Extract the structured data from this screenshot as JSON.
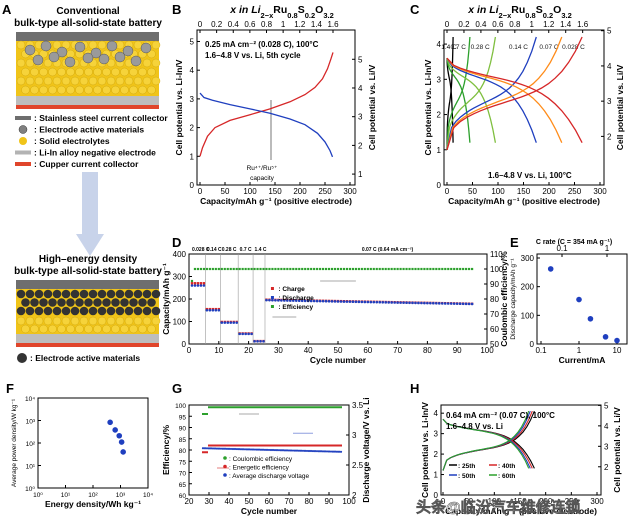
{
  "panel_letters": {
    "a": "A",
    "b": "B",
    "c": "C",
    "d": "D",
    "e": "E",
    "f": "F",
    "g": "G",
    "h": "H"
  },
  "schematic": {
    "conventional_title": "Conventional",
    "conventional_subtitle": "bulk-type all-solid-state battery",
    "legend": [
      {
        "label": ": Stainless steel current collector",
        "color": "#6e6e6e"
      },
      {
        "label": ": Electrode active materials",
        "color": "#808080"
      },
      {
        "label": ": Solid electrolytes",
        "color": "#f0c419"
      },
      {
        "label": ": Li-In alloy negative electrode",
        "color": "#b3b3b3"
      },
      {
        "label": ": Cupper current collector",
        "color": "#e0452b"
      }
    ],
    "high_title": "High–energy density",
    "high_subtitle": "bulk-type all-solid-state battery",
    "high_legend": ": Electrode active materials",
    "colors": {
      "steel": "#6e6e6e",
      "electrolyte": "#f0c419",
      "active_light": "#9a9a9a",
      "active_dark": "#333333",
      "lithium": "#bdbdbd",
      "copper": "#e0452b",
      "arrow": "#c8d3ea"
    }
  },
  "panel_b": {
    "top_axis_title": "x in Li2−xRu0.8S0.2O3.2",
    "top_axis_title_parts": {
      "base": "x in Li",
      "s1": "2−x",
      "t2": "Ru",
      "s2": "0.8",
      "t3": "S",
      "s3": "0.2",
      "t4": "O",
      "s4": "3.2"
    },
    "top_ticks": [
      "0",
      "0.2",
      "0.4",
      "0.6",
      "0.8",
      "1",
      "1.2",
      "1.4",
      "1.6"
    ],
    "bottom_ticks": [
      "0",
      "50",
      "100",
      "150",
      "200",
      "250",
      "300"
    ],
    "left_ticks": [
      "0",
      "1",
      "2",
      "3",
      "4",
      "5"
    ],
    "right_ticks": [
      "1",
      "2",
      "3",
      "4",
      "5"
    ],
    "xlabel": "Capacity/mAh g⁻¹ (positive electrode)",
    "ylabel_left": "Cell potential vs. Li-In/V",
    "ylabel_right": "Cell potential vs. Li/V",
    "cond1": "0.25 mA cm⁻² (0.028 C), 100°C",
    "cond2": "1.6–4.8 V vs. Li, 5th cycle",
    "annotation1": "Ru⁴⁺/Ru⁵⁺",
    "annotation2": "capacity",
    "annotation_x": 142
  },
  "panel_c": {
    "top_axis_title": "x in Li2−xRu0.8S0.2O3.2",
    "top_axis_title_parts": {
      "base": "x in Li",
      "s1": "2−x",
      "t2": "Ru",
      "s2": "0.8",
      "t3": "S",
      "s3": "0.2",
      "t4": "O",
      "s4": "3.2"
    },
    "top_ticks": [
      "0",
      "0.2",
      "0.4",
      "0.6",
      "0.8",
      "1",
      "1.2",
      "1.4",
      "1.6"
    ],
    "bottom_ticks": [
      "0",
      "50",
      "100",
      "150",
      "200",
      "250",
      "300"
    ],
    "left_ticks": [
      "0",
      "1",
      "2",
      "3",
      "4"
    ],
    "right_ticks": [
      "2",
      "3",
      "4",
      "5"
    ],
    "xlabel": "Capacity/mAh g⁻¹ (positive electrode)",
    "ylabel_left": "Cell potential vs. Li-In/V",
    "ylabel_right": "Cell potential vs. Li/V",
    "rate_labels": [
      {
        "text": "1.4 C",
        "x": 4,
        "color": "#000000"
      },
      {
        "text": "0.7 C",
        "x": 22,
        "color": "#1a1a1a"
      },
      {
        "text": "0.28 C",
        "x": 65,
        "color": "#1a1a1a"
      },
      {
        "text": "0.14 C",
        "x": 140,
        "color": "#1a1a1a"
      },
      {
        "text": "0.07 C",
        "x": 200,
        "color": "#1a1a1a"
      },
      {
        "text": "0.028 C",
        "x": 248,
        "color": "#1a1a1a"
      }
    ],
    "cond": "1.6–4.8 V vs. Li, 100°C"
  },
  "panel_d": {
    "header": [
      {
        "text": "0.028 C",
        "x": 1
      },
      {
        "text": "0.14 C",
        "x": 6
      },
      {
        "text": "0.28 C",
        "x": 11
      },
      {
        "text": "0.7 C",
        "x": 17
      },
      {
        "text": "1.4 C",
        "x": 22
      },
      {
        "text": "0.07 C (0.64 mA cm⁻²)",
        "x": 58
      }
    ],
    "bottom_ticks": [
      "0",
      "10",
      "20",
      "30",
      "40",
      "50",
      "60",
      "70",
      "80",
      "90",
      "100"
    ],
    "left_ticks": [
      "0",
      "100",
      "200",
      "300",
      "400"
    ],
    "right_ticks": [
      "50",
      "60",
      "70",
      "80",
      "90",
      "100",
      "110"
    ],
    "xlabel": "Cycle number",
    "ylabel_left": "Capacity/mAh g⁻¹",
    "ylabel_right": "Coulombic efficiency/%",
    "legend": [
      {
        "label": ": Charge",
        "color": "#d62728"
      },
      {
        "label": ": Discharge",
        "color": "#1f3fbf"
      },
      {
        "label": ": Efficiency",
        "color": "#2ca02c"
      }
    ]
  },
  "panel_e": {
    "top_title": "C rate (C = 354 mA g⁻¹)",
    "top_ticks": [
      "0.1",
      "1"
    ],
    "bottom_ticks": [
      "0.1",
      "1",
      "10"
    ],
    "left_ticks": [
      "0",
      "100",
      "200",
      "300"
    ],
    "xlabel": "Current/mA",
    "ylabel": "Discharge capacity/mAh g⁻¹"
  },
  "panel_f": {
    "bottom_ticks": [
      "10⁰",
      "10¹",
      "10²",
      "10³",
      "10⁴"
    ],
    "left_ticks": [
      "10⁰",
      "10¹",
      "10²",
      "10³",
      "10⁴"
    ],
    "xlabel": "Energy density/Wh kg⁻¹",
    "ylabel": "Average power density/W kg⁻¹"
  },
  "panel_g": {
    "bottom_ticks": [
      "20",
      "30",
      "40",
      "50",
      "60",
      "70",
      "80",
      "90",
      "100"
    ],
    "left_ticks": [
      "60",
      "65",
      "70",
      "75",
      "80",
      "85",
      "90",
      "95",
      "100"
    ],
    "right_ticks": [
      "2",
      "2.5",
      "3",
      "3.5"
    ],
    "xlabel": "Cycle number",
    "ylabel_left": "Efficiency/%",
    "ylabel_right": "Discharge voltage/V vs. Li",
    "legend": [
      {
        "label": ": Coulombic efficiency",
        "color": "#2ca02c"
      },
      {
        "label": ": Energetic efficiency",
        "color": "#d62728"
      },
      {
        "label": ": Average discharge voltage",
        "color": "#1f3fbf"
      }
    ]
  },
  "panel_h": {
    "bottom_ticks": [
      "0",
      "50",
      "100",
      "150",
      "200",
      "250",
      "300"
    ],
    "left_ticks": [
      "0",
      "1",
      "2",
      "3",
      "4"
    ],
    "right_ticks": [
      "2",
      "3",
      "4",
      "5"
    ],
    "xlabel": "Capacity/mAh g⁻¹ (positive electrode)",
    "ylabel_left": "Cell potential vs. Li-In/V",
    "ylabel_right": "Cell potential vs. Li/V",
    "cond1": "0.64 mA cm⁻² (0.07 C), 100°C",
    "cond2": "1.6–4.8 V vs. Li",
    "legend": [
      {
        "label": ": 25th",
        "color": "#000000"
      },
      {
        "label": ": 40th",
        "color": "#d62728"
      },
      {
        "label": ": 50th",
        "color": "#1f3fbf"
      },
      {
        "label": ": 60th",
        "color": "#2ca02c"
      }
    ]
  },
  "watermark": "头条@临汾汽车维修连锁",
  "chart_data": [
    {
      "id": "B",
      "type": "line",
      "xlabel": "Capacity/mAh g⁻¹ (positive electrode)",
      "ylabel": "Cell potential vs. Li-In/V",
      "xlim": [
        0,
        300
      ],
      "ylim": [
        0,
        5.4
      ],
      "series": [
        {
          "color": "#d62728",
          "x": [
            0,
            5,
            15,
            30,
            60,
            100,
            140,
            180,
            210,
            230,
            245,
            255,
            262,
            266
          ],
          "y": [
            1.0,
            1.3,
            1.7,
            2.0,
            2.25,
            2.45,
            2.65,
            2.9,
            3.15,
            3.4,
            3.7,
            4.05,
            4.4,
            4.62
          ]
        },
        {
          "color": "#1f3fbf",
          "x": [
            0,
            8,
            25,
            60,
            100,
            140,
            180,
            210,
            235,
            250,
            260,
            265
          ],
          "y": [
            3.2,
            3.05,
            2.95,
            2.8,
            2.65,
            2.5,
            2.3,
            2.1,
            1.8,
            1.5,
            1.2,
            0.98
          ]
        }
      ]
    },
    {
      "id": "C",
      "type": "line",
      "xlabel": "Capacity/mAh g⁻¹ (positive electrode)",
      "ylabel": "Cell potential vs. Li-In/V",
      "xlim": [
        0,
        300
      ],
      "ylim": [
        0,
        4.4
      ],
      "series": [
        {
          "name": "1.4 C",
          "color": "#000000",
          "charge_end": 12,
          "discharge_end": 12
        },
        {
          "name": "0.7 C",
          "color": "#2ca02c",
          "charge_end": 45,
          "discharge_end": 45
        },
        {
          "name": "0.28 C",
          "color": "#7fbf3f",
          "charge_end": 95,
          "discharge_end": 95
        },
        {
          "name": "0.14 C",
          "color": "#1f3fbf",
          "charge_end": 175,
          "discharge_end": 175
        },
        {
          "name": "0.07 C",
          "color": "#ff8c1a",
          "charge_end": 225,
          "discharge_end": 225
        },
        {
          "name": "0.028 C",
          "color": "#d62728",
          "charge_end": 265,
          "discharge_end": 265
        }
      ]
    },
    {
      "id": "D",
      "type": "scatter",
      "xlabel": "Cycle number",
      "ylabel": "Capacity/mAh g⁻¹",
      "xlim": [
        0,
        100
      ],
      "ylim": [
        0,
        400
      ],
      "y2lim": [
        50,
        110
      ],
      "segments": [
        {
          "cycles": [
            1,
            5
          ],
          "discharge": 260,
          "charge": 270
        },
        {
          "cycles": [
            6,
            10
          ],
          "discharge": 150,
          "charge": 155
        },
        {
          "cycles": [
            11,
            16
          ],
          "discharge": 95,
          "charge": 98
        },
        {
          "cycles": [
            17,
            21
          ],
          "discharge": 45,
          "charge": 47
        },
        {
          "cycles": [
            22,
            25
          ],
          "discharge": 12,
          "charge": 13
        },
        {
          "cycles": [
            26,
            95
          ],
          "discharge_start": 195,
          "discharge_end": 178,
          "charge_start": 197,
          "charge_end": 179
        }
      ],
      "efficiency": 100
    },
    {
      "id": "E",
      "type": "scatter",
      "xlabel": "Current/mA",
      "ylabel": "Discharge capacity/mAh g⁻¹",
      "xscale": "log",
      "xlim": [
        0.1,
        10
      ],
      "ylim": [
        0,
        300
      ],
      "x": [
        0.18,
        1.0,
        2.0,
        5.0,
        10.0
      ],
      "y": [
        262,
        155,
        88,
        25,
        12
      ]
    },
    {
      "id": "F",
      "type": "scatter",
      "xlabel": "Energy density/Wh kg⁻¹",
      "ylabel": "Average power density/W kg⁻¹",
      "xscale": "log",
      "yscale": "log",
      "xlim": [
        1,
        10000
      ],
      "ylim": [
        1,
        10000
      ],
      "x": [
        420,
        640,
        900,
        1100,
        1250
      ],
      "y": [
        830,
        380,
        210,
        110,
        40
      ]
    },
    {
      "id": "G",
      "type": "scatter",
      "xlabel": "Cycle number",
      "ylabel": "Efficiency/%",
      "xlim": [
        20,
        100
      ],
      "ylim": [
        60,
        100
      ],
      "y2lim": [
        2.0,
        3.5
      ],
      "coulombic": {
        "start": 96,
        "value": 99
      },
      "energetic": {
        "start": 79,
        "value": 82
      },
      "voltage": {
        "start": 2.78,
        "end": 2.72
      }
    },
    {
      "id": "H",
      "type": "line",
      "xlabel": "Capacity/mAh g⁻¹ (positive electrode)",
      "ylabel": "Cell potential vs. Li-In/V",
      "xlim": [
        0,
        300
      ],
      "ylim": [
        0,
        4.4
      ],
      "series": [
        {
          "name": "25th",
          "color": "#000000",
          "end": 178
        },
        {
          "name": "40th",
          "color": "#d62728",
          "end": 174
        },
        {
          "name": "50th",
          "color": "#1f3fbf",
          "end": 170
        },
        {
          "name": "60th",
          "color": "#2ca02c",
          "end": 167
        }
      ]
    }
  ]
}
